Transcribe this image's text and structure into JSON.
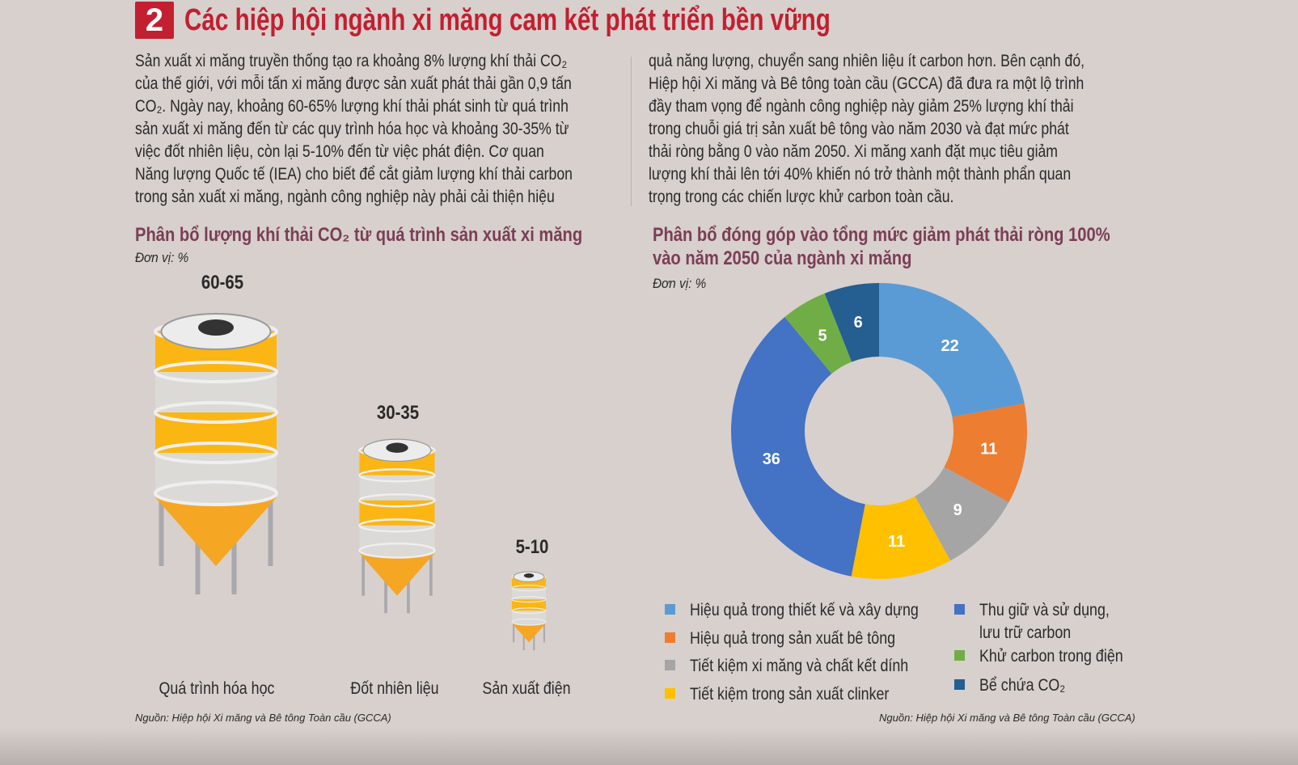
{
  "header": {
    "number": "2",
    "title": "Các hiệp hội ngành xi măng cam kết phát triển bền vững"
  },
  "body_left": [
    "Sản xuất xi măng truyền thống tạo ra khoảng 8% lượng khí thải CO₂",
    "của thế giới, với mỗi tấn xi măng được sản xuất phát thải gần 0,9 tấn",
    "CO₂. Ngày nay, khoảng 60-65% lượng khí thải phát sinh từ quá trình",
    "sản xuất xi măng đến từ các quy trình hóa học và khoảng 30-35% từ",
    "việc đốt nhiên liệu, còn lại 5-10% đến từ việc phát điện. Cơ quan",
    "Năng lượng Quốc tế (IEA) cho biết để cắt giảm lượng khí thải carbon",
    "trong sản xuất xi măng, ngành công nghiệp này phải cải thiện hiệu"
  ],
  "body_right": [
    "quả năng lượng, chuyển sang nhiên liệu ít carbon hơn. Bên cạnh đó,",
    "Hiệp hội Xi măng và Bê tông toàn cầu (GCCA) đã đưa ra một lộ trình",
    "đầy tham vọng để ngành công nghiệp này giảm 25% lượng khí thải",
    "trong chuỗi giá trị sản xuất bê tông vào năm 2030 và đạt mức phát",
    "thải ròng bằng 0 vào năm 2050. Xi măng xanh đặt mục tiêu giảm",
    "lượng khí thải lên tới 40% khiến nó trở thành một thành phẩn quan",
    "trọng trong các chiến lược khử carbon toàn cầu."
  ],
  "chart_data": [
    {
      "type": "bar",
      "title": "Phân bổ lượng khí thải CO₂ từ quá trình sản xuất xi măng",
      "unit": "Đơn vị: %",
      "categories": [
        "Quá trình hóa học",
        "Đốt nhiên liệu",
        "Sản xuất điện"
      ],
      "labels": [
        "60-65",
        "30-35",
        "5-10"
      ],
      "values": [
        [
          60,
          65
        ],
        [
          30,
          35
        ],
        [
          5,
          10
        ]
      ],
      "source": "Nguồn: Hiệp hội Xi măng và Bê tông Toàn cầu (GCCA)",
      "colors": {
        "silo": "#fbb614",
        "cone": "#f5a623",
        "body": "#dcdad6"
      }
    },
    {
      "type": "pie",
      "donut": true,
      "title_lines": [
        "Phân bổ đóng góp vào tổng mức giảm phát thải ròng 100%",
        "vào năm 2050 của ngành xi măng"
      ],
      "unit": "Đơn vị: %",
      "slices": [
        {
          "name": "Hiệu quả trong thiết kế và xây dựng",
          "value": 22,
          "color": "#5b9bd5"
        },
        {
          "name": "Hiệu quả trong sản xuất bê tông",
          "value": 11,
          "color": "#ed7d31"
        },
        {
          "name": "Tiết kiệm xi măng và chất kết dính",
          "value": 9,
          "color": "#a5a5a5"
        },
        {
          "name": "Tiết kiệm trong sản xuất clinker",
          "value": 11,
          "color": "#ffc000"
        },
        {
          "name": "Thu giữ và sử dụng, lưu trữ carbon",
          "value": 36,
          "color": "#4472c4"
        },
        {
          "name": "Khử carbon trong điện",
          "value": 5,
          "color": "#70ad47"
        },
        {
          "name": "Bể chứa CO₂",
          "value": 6,
          "color": "#255e91"
        }
      ],
      "legend_lines": {
        "4": [
          "Thu giữ và sử dụng,",
          "lưu trữ carbon"
        ]
      },
      "source": "Nguồn: Hiệp hội Xi măng và Bê tông Toàn cầu (GCCA)"
    }
  ]
}
